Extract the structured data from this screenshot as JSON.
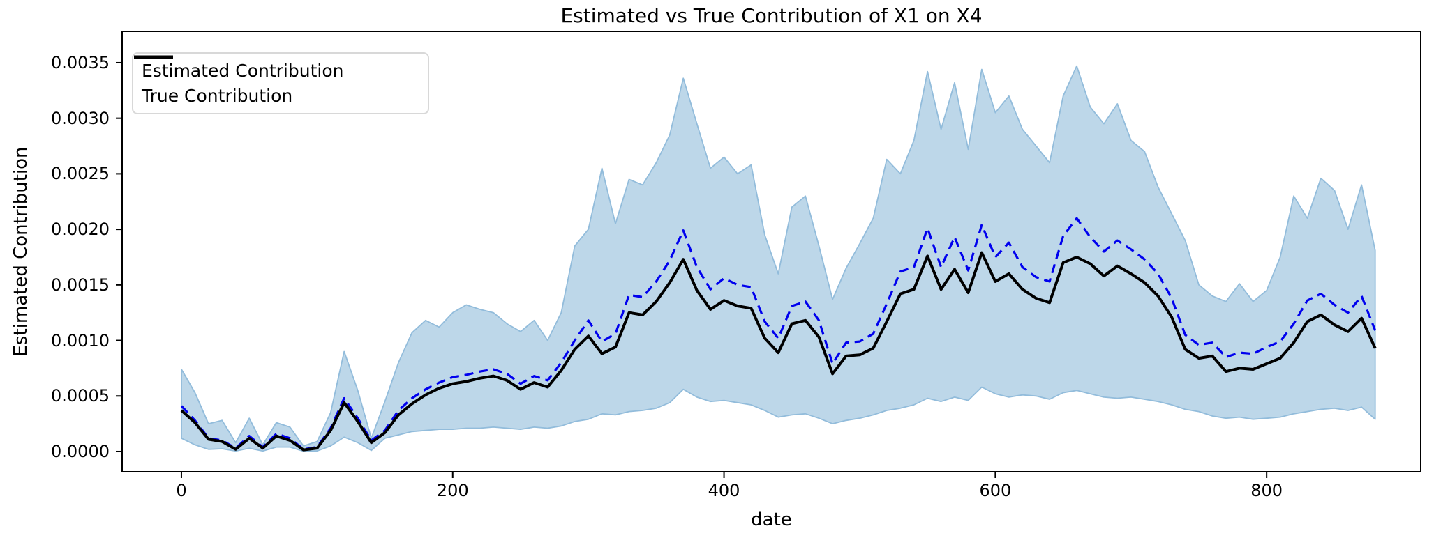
{
  "chart_data": {
    "type": "line",
    "title": "Estimated vs True Contribution of X1 on X4",
    "xlabel": "date",
    "ylabel": "Estimated Contribution",
    "grid": false,
    "xlim": [
      -43.7,
      913.6
    ],
    "ylim": [
      -0.000182,
      0.003782
    ],
    "xticks": [
      0,
      200,
      400,
      600,
      800
    ],
    "yticks": [
      0,
      0.0005,
      0.001,
      0.0015,
      0.002,
      0.0025,
      0.003,
      0.0035
    ],
    "ytick_labels": [
      "0.0000",
      "0.0005",
      "0.0010",
      "0.0015",
      "0.0020",
      "0.0025",
      "0.0030",
      "0.0035"
    ],
    "legend": {
      "position": "upper left",
      "entries": [
        {
          "label": "Estimated Contribution",
          "color": "#0000ee",
          "style": "dashed"
        },
        {
          "label": "True Contribution",
          "color": "#000000",
          "style": "solid"
        }
      ]
    },
    "x": [
      0,
      10,
      20,
      30,
      40,
      50,
      60,
      70,
      80,
      90,
      100,
      110,
      120,
      130,
      140,
      150,
      160,
      170,
      180,
      190,
      200,
      210,
      220,
      230,
      240,
      250,
      260,
      270,
      280,
      290,
      300,
      310,
      320,
      330,
      340,
      350,
      360,
      370,
      380,
      390,
      400,
      410,
      420,
      430,
      440,
      450,
      460,
      470,
      480,
      490,
      500,
      510,
      520,
      530,
      540,
      550,
      560,
      570,
      580,
      590,
      600,
      610,
      620,
      630,
      640,
      650,
      660,
      670,
      680,
      690,
      700,
      710,
      720,
      730,
      740,
      750,
      760,
      770,
      780,
      790,
      800,
      810,
      820,
      830,
      840,
      850,
      860,
      870,
      880
    ],
    "series": [
      {
        "name": "Estimated Contribution",
        "color": "#0000ee",
        "style": "dashed",
        "linewidth": 3.2,
        "values": [
          0.00041,
          0.00028,
          0.00012,
          0.0001,
          3e-05,
          0.00014,
          4e-05,
          0.00016,
          0.00012,
          2e-05,
          4e-05,
          0.00021,
          0.00048,
          0.0003,
          0.0001,
          0.00019,
          0.00037,
          0.00048,
          0.00056,
          0.00062,
          0.00067,
          0.00069,
          0.00072,
          0.00074,
          0.0007,
          0.00061,
          0.00068,
          0.00064,
          0.0008,
          0.001,
          0.00118,
          0.00099,
          0.00106,
          0.00141,
          0.00139,
          0.00153,
          0.00172,
          0.00199,
          0.00166,
          0.00146,
          0.00156,
          0.0015,
          0.00148,
          0.00117,
          0.00102,
          0.00131,
          0.00135,
          0.00118,
          0.00079,
          0.00098,
          0.00099,
          0.00106,
          0.00133,
          0.00162,
          0.00166,
          0.00201,
          0.00166,
          0.00193,
          0.00163,
          0.00204,
          0.00175,
          0.00188,
          0.00166,
          0.00157,
          0.00153,
          0.00194,
          0.0021,
          0.00193,
          0.0018,
          0.0019,
          0.00182,
          0.00173,
          0.0016,
          0.00138,
          0.00105,
          0.00096,
          0.00098,
          0.00085,
          0.00089,
          0.00088,
          0.00094,
          0.00099,
          0.00115,
          0.00136,
          0.00142,
          0.00132,
          0.00125,
          0.0014,
          0.00109
        ]
      },
      {
        "name": "True Contribution",
        "color": "#000000",
        "style": "solid",
        "linewidth": 4,
        "values": [
          0.00037,
          0.00026,
          0.00011,
          9e-05,
          2e-05,
          0.00012,
          3e-05,
          0.00014,
          0.0001,
          1.5e-05,
          3e-05,
          0.00019,
          0.00044,
          0.00027,
          8e-05,
          0.00017,
          0.00033,
          0.00043,
          0.00051,
          0.00057,
          0.00061,
          0.00063,
          0.00066,
          0.00068,
          0.00064,
          0.00056,
          0.00062,
          0.00058,
          0.00073,
          0.00092,
          0.00104,
          0.00088,
          0.00094,
          0.00125,
          0.00123,
          0.00135,
          0.00152,
          0.00173,
          0.00145,
          0.00128,
          0.00136,
          0.00131,
          0.00129,
          0.00102,
          0.00089,
          0.00115,
          0.00118,
          0.00103,
          0.0007,
          0.00086,
          0.00087,
          0.00093,
          0.00117,
          0.00142,
          0.00146,
          0.00176,
          0.00146,
          0.00164,
          0.00143,
          0.00179,
          0.00153,
          0.0016,
          0.00146,
          0.00138,
          0.00134,
          0.0017,
          0.00175,
          0.00169,
          0.00158,
          0.00167,
          0.0016,
          0.00152,
          0.0014,
          0.00121,
          0.00092,
          0.00084,
          0.00086,
          0.00072,
          0.00075,
          0.00074,
          0.00079,
          0.00084,
          0.00098,
          0.00117,
          0.00123,
          0.00114,
          0.00108,
          0.0012,
          0.00093
        ]
      }
    ],
    "band": {
      "name": "confidence-interval-band",
      "fill": "#bdd7e9",
      "edge": "#92bcdb",
      "upper": [
        0.00074,
        0.00053,
        0.00025,
        0.00028,
        8e-05,
        0.0003,
        6e-05,
        0.00026,
        0.00022,
        5e-05,
        9e-05,
        0.00035,
        0.0009,
        0.00055,
        0.00012,
        0.00045,
        0.0008,
        0.00107,
        0.00118,
        0.00112,
        0.00125,
        0.00132,
        0.00128,
        0.00125,
        0.00115,
        0.00108,
        0.00118,
        0.001,
        0.00125,
        0.00185,
        0.002,
        0.00255,
        0.00205,
        0.00245,
        0.0024,
        0.0026,
        0.00285,
        0.00336,
        0.00295,
        0.00255,
        0.00265,
        0.0025,
        0.00258,
        0.00195,
        0.0016,
        0.0022,
        0.0023,
        0.00185,
        0.00137,
        0.00165,
        0.00187,
        0.0021,
        0.00263,
        0.0025,
        0.0028,
        0.00342,
        0.0029,
        0.00332,
        0.00272,
        0.00344,
        0.00305,
        0.0032,
        0.0029,
        0.00275,
        0.0026,
        0.0032,
        0.00347,
        0.0031,
        0.00295,
        0.00313,
        0.0028,
        0.0027,
        0.00238,
        0.00214,
        0.0019,
        0.0015,
        0.0014,
        0.00135,
        0.00151,
        0.00135,
        0.00145,
        0.00175,
        0.0023,
        0.0021,
        0.00246,
        0.00235,
        0.002,
        0.0024,
        0.00181
      ],
      "lower": [
        0.00012,
        6e-05,
        2e-05,
        2.5e-05,
        5e-06,
        3e-05,
        5e-06,
        4e-05,
        4e-05,
        3e-06,
        5e-06,
        5e-05,
        0.00013,
        8e-05,
        1e-05,
        0.00012,
        0.00015,
        0.00018,
        0.00019,
        0.0002,
        0.0002,
        0.00021,
        0.00021,
        0.00022,
        0.00021,
        0.0002,
        0.00022,
        0.00021,
        0.00023,
        0.00027,
        0.00029,
        0.00034,
        0.00033,
        0.00036,
        0.00037,
        0.00039,
        0.00044,
        0.00056,
        0.00049,
        0.00045,
        0.00046,
        0.00044,
        0.00042,
        0.00037,
        0.00031,
        0.00033,
        0.00034,
        0.0003,
        0.00025,
        0.00028,
        0.0003,
        0.00033,
        0.00037,
        0.00039,
        0.00042,
        0.00048,
        0.00045,
        0.00049,
        0.00046,
        0.00058,
        0.00052,
        0.00049,
        0.00051,
        0.0005,
        0.00047,
        0.00053,
        0.00055,
        0.00052,
        0.00049,
        0.00048,
        0.00049,
        0.00047,
        0.00045,
        0.00042,
        0.00038,
        0.00036,
        0.00032,
        0.0003,
        0.00031,
        0.00029,
        0.0003,
        0.00031,
        0.00034,
        0.00036,
        0.00038,
        0.00039,
        0.00037,
        0.0004,
        0.00029
      ]
    },
    "colors": {
      "spine": "#000000",
      "tick": "#000000",
      "background": "#ffffff"
    }
  }
}
